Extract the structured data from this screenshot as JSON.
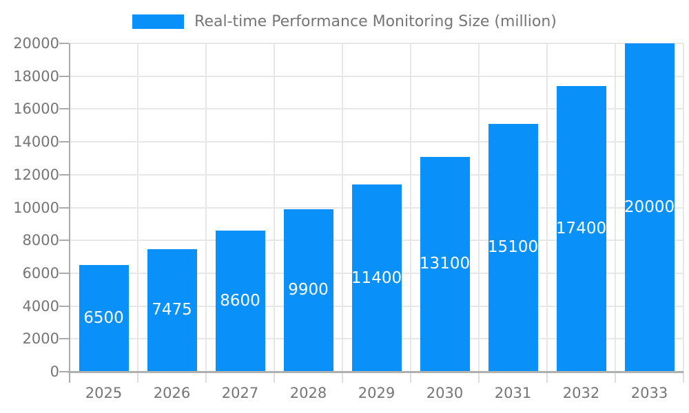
{
  "chart_data": {
    "type": "bar",
    "title": "",
    "legend": {
      "label": "Real-time Performance Monitoring Size (million)",
      "position": "top-center"
    },
    "categories": [
      "2025",
      "2026",
      "2027",
      "2028",
      "2029",
      "2030",
      "2031",
      "2032",
      "2033"
    ],
    "series": [
      {
        "name": "Real-time Performance Monitoring Size (million)",
        "values": [
          6500,
          7475,
          8600,
          9900,
          11400,
          13100,
          15100,
          17400,
          20000
        ]
      }
    ],
    "value_labels": [
      "6500",
      "7475",
      "8600",
      "9900",
      "11400",
      "13100",
      "15100",
      "17400",
      "20000"
    ],
    "xlabel": "",
    "ylabel": "",
    "ylim": [
      0,
      20000
    ],
    "ytick_step": 2000,
    "ytick_labels": [
      "0",
      "2000",
      "4000",
      "6000",
      "8000",
      "10000",
      "12000",
      "14000",
      "16000",
      "18000",
      "20000"
    ],
    "grid": true,
    "value_label_position": "inside-center",
    "colors": {
      "bar": "#0991f9",
      "value_label_text": "#ffffff",
      "axis_label_text": "#757575",
      "legend_text": "#757575",
      "gridline": "#e7e7e7",
      "axis_line": "#ababab",
      "background": "#ffffff"
    }
  }
}
